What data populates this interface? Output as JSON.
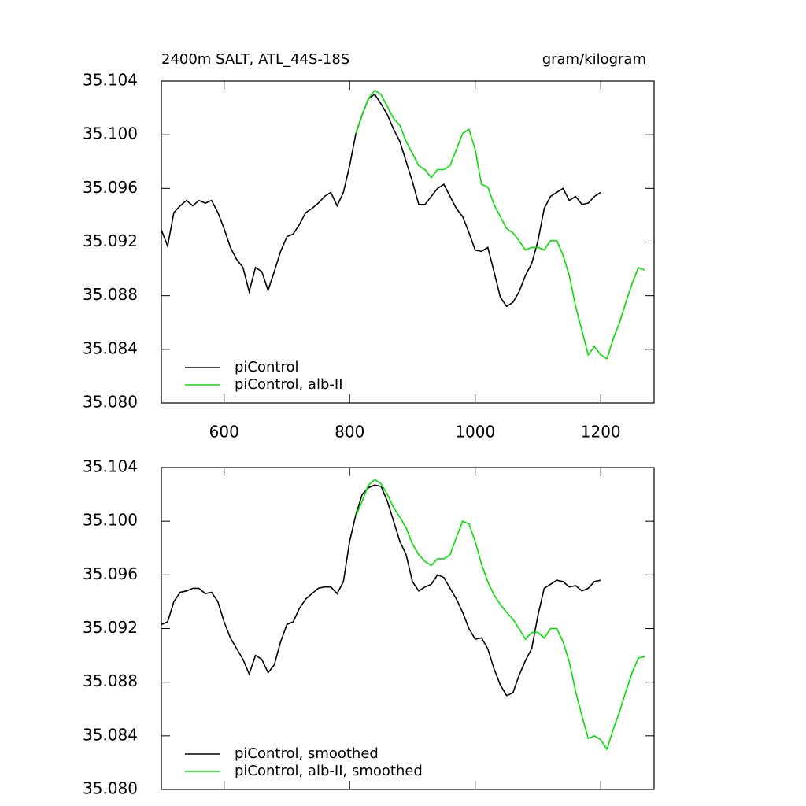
{
  "chart_data": [
    {
      "type": "line",
      "title": "2400m SALT, ATL_44S-18S",
      "units": "gram/kilogram",
      "xlim": [
        500,
        1285
      ],
      "xticks": [
        600,
        800,
        1000,
        1200
      ],
      "xtick_labels": true,
      "ylim": [
        35.08,
        35.104
      ],
      "yticks": [
        {
          "value": 35.08,
          "label": "35.080"
        },
        {
          "value": 35.084,
          "label": "35.084"
        },
        {
          "value": 35.088,
          "label": "35.088"
        },
        {
          "value": 35.092,
          "label": "35.092"
        },
        {
          "value": 35.096,
          "label": "35.096"
        },
        {
          "value": 35.1,
          "label": "35.100"
        },
        {
          "value": 35.104,
          "label": "35.104"
        }
      ],
      "legend": "lower left",
      "series": [
        {
          "name": "piControl",
          "color": "#000000",
          "x": [
            500,
            510,
            520,
            530,
            540,
            550,
            560,
            570,
            580,
            590,
            600,
            610,
            620,
            630,
            640,
            650,
            660,
            670,
            680,
            690,
            700,
            710,
            720,
            730,
            740,
            750,
            760,
            770,
            780,
            790,
            800,
            810,
            820,
            830,
            840,
            850,
            860,
            870,
            880,
            890,
            900,
            910,
            920,
            930,
            940,
            950,
            960,
            970,
            980,
            990,
            1000,
            1010,
            1020,
            1030,
            1040,
            1050,
            1060,
            1070,
            1080,
            1090,
            1100,
            1110,
            1120,
            1130,
            1140,
            1150,
            1160,
            1170,
            1180,
            1190,
            1200
          ],
          "values": [
            35.0929,
            35.0917,
            35.0942,
            35.0947,
            35.0951,
            35.0947,
            35.0951,
            35.0949,
            35.0951,
            35.0942,
            35.093,
            35.0916,
            35.0907,
            35.0901,
            35.0883,
            35.0901,
            35.0898,
            35.0884,
            35.0898,
            35.0913,
            35.0924,
            35.0926,
            35.0933,
            35.0942,
            35.0945,
            35.0949,
            35.0954,
            35.0957,
            35.0947,
            35.0957,
            35.0977,
            35.1001,
            35.1015,
            35.1027,
            35.103,
            35.1023,
            35.1015,
            35.1004,
            35.0995,
            35.098,
            35.0965,
            35.0948,
            35.0948,
            35.0954,
            35.096,
            35.0963,
            35.0954,
            35.0945,
            35.0939,
            35.0927,
            35.0914,
            35.0913,
            35.0916,
            35.0898,
            35.0879,
            35.0872,
            35.0875,
            35.0883,
            35.0895,
            35.0904,
            35.0921,
            35.0945,
            35.0954,
            35.0957,
            35.096,
            35.0951,
            35.0954,
            35.0948,
            35.0949,
            35.0954,
            35.0957
          ]
        },
        {
          "name": "piControl, alb-II",
          "color": "#00e000",
          "x": [
            810,
            820,
            830,
            840,
            850,
            860,
            870,
            880,
            890,
            900,
            910,
            920,
            930,
            940,
            950,
            960,
            970,
            980,
            990,
            1000,
            1010,
            1020,
            1030,
            1040,
            1050,
            1060,
            1070,
            1080,
            1090,
            1100,
            1110,
            1120,
            1130,
            1140,
            1150,
            1160,
            1170,
            1180,
            1190,
            1200,
            1210,
            1220,
            1230,
            1240,
            1250,
            1260,
            1270
          ],
          "values": [
            35.1001,
            35.1015,
            35.1027,
            35.1033,
            35.103,
            35.1021,
            35.1012,
            35.1007,
            35.0995,
            35.0986,
            35.0977,
            35.0974,
            35.0968,
            35.0974,
            35.0974,
            35.0977,
            35.0989,
            35.1001,
            35.1004,
            35.0989,
            35.0963,
            35.0961,
            35.0948,
            35.0939,
            35.093,
            35.0927,
            35.0921,
            35.0914,
            35.0916,
            35.0916,
            35.0914,
            35.0921,
            35.0921,
            35.091,
            35.0895,
            35.0872,
            35.0854,
            35.0836,
            35.0842,
            35.0836,
            35.0833,
            35.0848,
            35.086,
            35.0875,
            35.0889,
            35.0901,
            35.0899
          ]
        }
      ]
    },
    {
      "type": "line",
      "xlim": [
        500,
        1285
      ],
      "xticks": [
        600,
        800,
        1000,
        1200
      ],
      "xtick_labels": false,
      "ylim": [
        35.08,
        35.104
      ],
      "yticks": [
        {
          "value": 35.08,
          "label": "35.080"
        },
        {
          "value": 35.084,
          "label": "35.084"
        },
        {
          "value": 35.088,
          "label": "35.088"
        },
        {
          "value": 35.092,
          "label": "35.092"
        },
        {
          "value": 35.096,
          "label": "35.096"
        },
        {
          "value": 35.1,
          "label": "35.100"
        },
        {
          "value": 35.104,
          "label": "35.104"
        }
      ],
      "legend": "lower left",
      "series": [
        {
          "name": "piControl, smoothed",
          "color": "#000000",
          "x": [
            500,
            510,
            520,
            530,
            540,
            550,
            560,
            570,
            580,
            590,
            600,
            610,
            620,
            630,
            640,
            650,
            660,
            670,
            680,
            690,
            700,
            710,
            720,
            730,
            740,
            750,
            760,
            770,
            780,
            790,
            800,
            810,
            820,
            830,
            840,
            850,
            860,
            870,
            880,
            890,
            900,
            910,
            920,
            930,
            940,
            950,
            960,
            970,
            980,
            990,
            1000,
            1010,
            1020,
            1030,
            1040,
            1050,
            1060,
            1070,
            1080,
            1090,
            1100,
            1110,
            1120,
            1130,
            1140,
            1150,
            1160,
            1170,
            1180,
            1190,
            1200
          ],
          "values": [
            35.0923,
            35.0925,
            35.094,
            35.0947,
            35.0948,
            35.095,
            35.095,
            35.0946,
            35.0947,
            35.094,
            35.0925,
            35.0913,
            35.0905,
            35.0897,
            35.0886,
            35.09,
            35.0897,
            35.0887,
            35.0893,
            35.091,
            35.0923,
            35.0925,
            35.0935,
            35.0942,
            35.0946,
            35.095,
            35.0951,
            35.0951,
            35.0946,
            35.0955,
            35.0985,
            35.1005,
            35.102,
            35.1025,
            35.1027,
            35.1026,
            35.1015,
            35.1,
            35.0985,
            35.0975,
            35.0955,
            35.0948,
            35.0951,
            35.0953,
            35.096,
            35.0958,
            35.095,
            35.0942,
            35.0932,
            35.092,
            35.0912,
            35.0913,
            35.0905,
            35.089,
            35.0878,
            35.087,
            35.0872,
            35.0885,
            35.0896,
            35.0905,
            35.093,
            35.095,
            35.0953,
            35.0956,
            35.0955,
            35.0951,
            35.0952,
            35.0948,
            35.095,
            35.0955,
            35.0956
          ]
        },
        {
          "name": "piControl, alb-II, smoothed",
          "color": "#00e000",
          "x": [
            810,
            820,
            830,
            840,
            850,
            860,
            870,
            880,
            890,
            900,
            910,
            920,
            930,
            940,
            950,
            960,
            970,
            980,
            990,
            1000,
            1010,
            1020,
            1030,
            1040,
            1050,
            1060,
            1070,
            1080,
            1090,
            1100,
            1110,
            1120,
            1130,
            1140,
            1150,
            1160,
            1170,
            1180,
            1190,
            1200,
            1210,
            1220,
            1230,
            1240,
            1250,
            1260,
            1270
          ],
          "values": [
            35.1004,
            35.1015,
            35.1027,
            35.1031,
            35.1028,
            35.102,
            35.101,
            35.1003,
            35.0995,
            35.0983,
            35.0975,
            35.097,
            35.0967,
            35.0972,
            35.0972,
            35.0975,
            35.0988,
            35.1,
            35.0998,
            35.0985,
            35.0968,
            35.0955,
            35.0945,
            35.0938,
            35.0932,
            35.0927,
            35.092,
            35.0912,
            35.0917,
            35.0917,
            35.0913,
            35.092,
            35.092,
            35.091,
            35.0895,
            35.0873,
            35.0855,
            35.0838,
            35.084,
            35.0837,
            35.083,
            35.0845,
            35.0858,
            35.0873,
            35.0887,
            35.0898,
            35.0899
          ]
        }
      ]
    }
  ]
}
